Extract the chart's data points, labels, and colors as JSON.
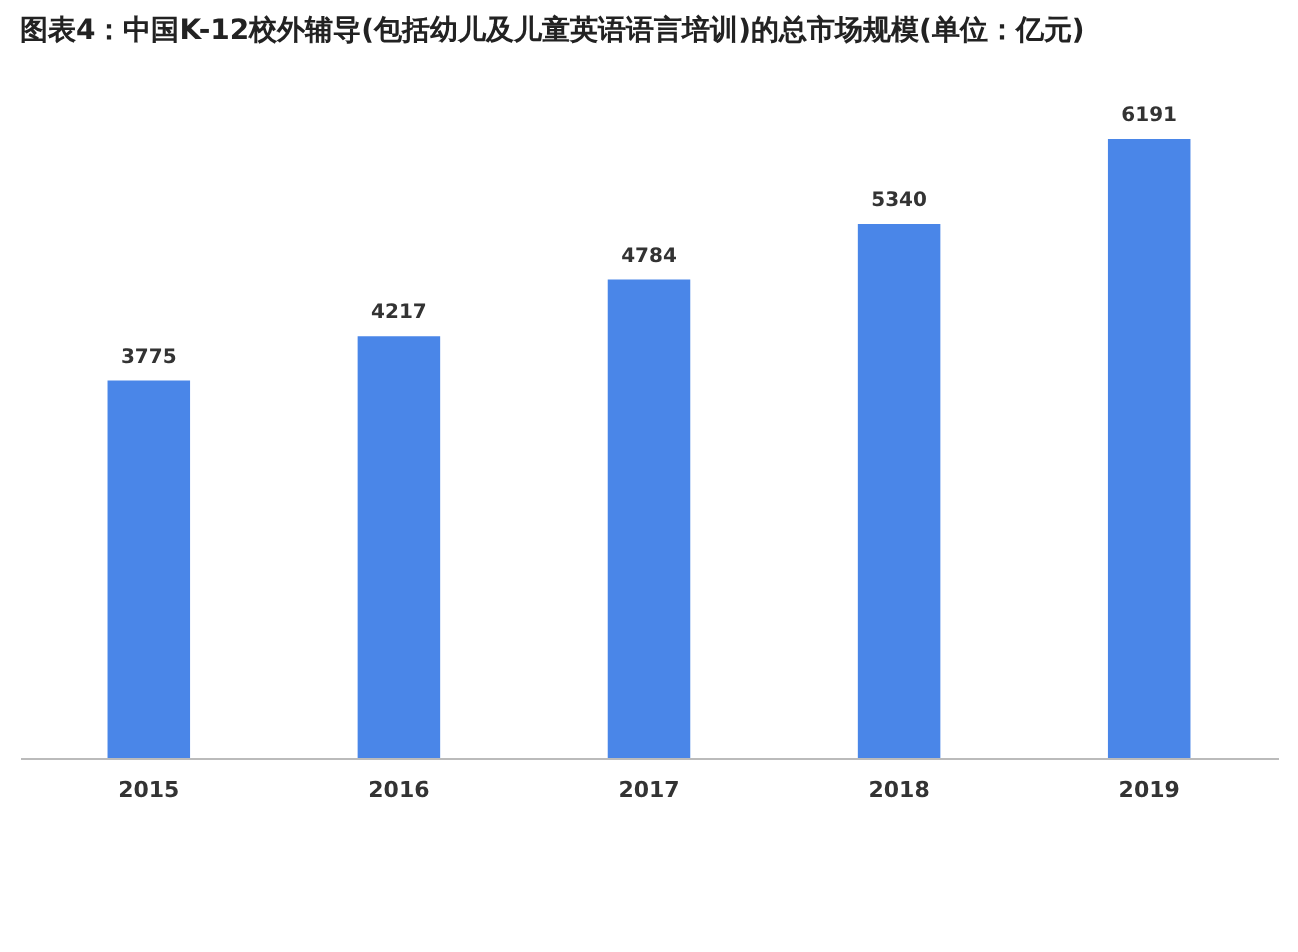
{
  "chart_data": {
    "type": "bar",
    "title": "图表4：中国K-12校外辅导(包括幼儿及儿童英语语言培训)的总市场规模(单位：亿元)",
    "categories": [
      "2015",
      "2016",
      "2017",
      "2018",
      "2019"
    ],
    "values": [
      3775,
      4217,
      4784,
      5340,
      6191
    ],
    "color": "#4a86e8",
    "data_labels": true,
    "grid": false
  }
}
